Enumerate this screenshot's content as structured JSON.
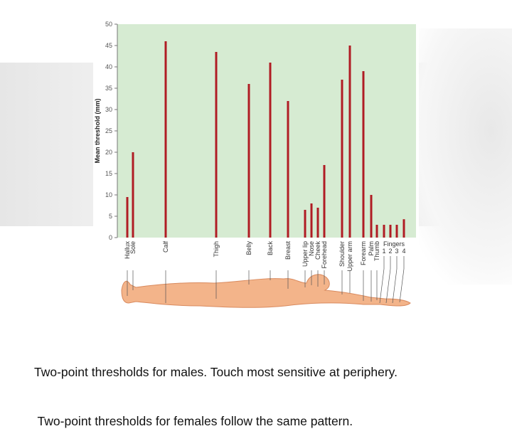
{
  "caption": {
    "line1": "Two-point thresholds for males. Touch most sensitive at periphery.",
    "line2": " Two-point thresholds for females follow the same pattern."
  },
  "colors": {
    "plot_bg": "#d6ebd2",
    "bar": "#b01c24",
    "skin": "#f3b48a",
    "skin_outline": "#d98a5e",
    "leader": "#555555"
  },
  "chart_data": {
    "type": "bar",
    "ylabel": "Mean threshold (mm)",
    "ylim": [
      0,
      50
    ],
    "yticks": [
      "0",
      "5",
      "10",
      "15",
      "20",
      "25",
      "30",
      "35",
      "40",
      "45",
      "50"
    ],
    "grid": false,
    "categories": [
      "Hallux",
      "Sole",
      "Calf",
      "Thigh",
      "Belly",
      "Back",
      "Breast",
      "Upper lip",
      "Nose",
      "Cheek",
      "Forehead",
      "Shoulder",
      "Upper arm",
      "Forearm",
      "Palm",
      "Thumb",
      "1",
      "2",
      "3",
      "4"
    ],
    "values": [
      9.5,
      20,
      46,
      43.5,
      36,
      41,
      32,
      6.5,
      8,
      7,
      17,
      37,
      45,
      39,
      10,
      3,
      3,
      3,
      3,
      4.3
    ],
    "group_label": "Fingers"
  }
}
